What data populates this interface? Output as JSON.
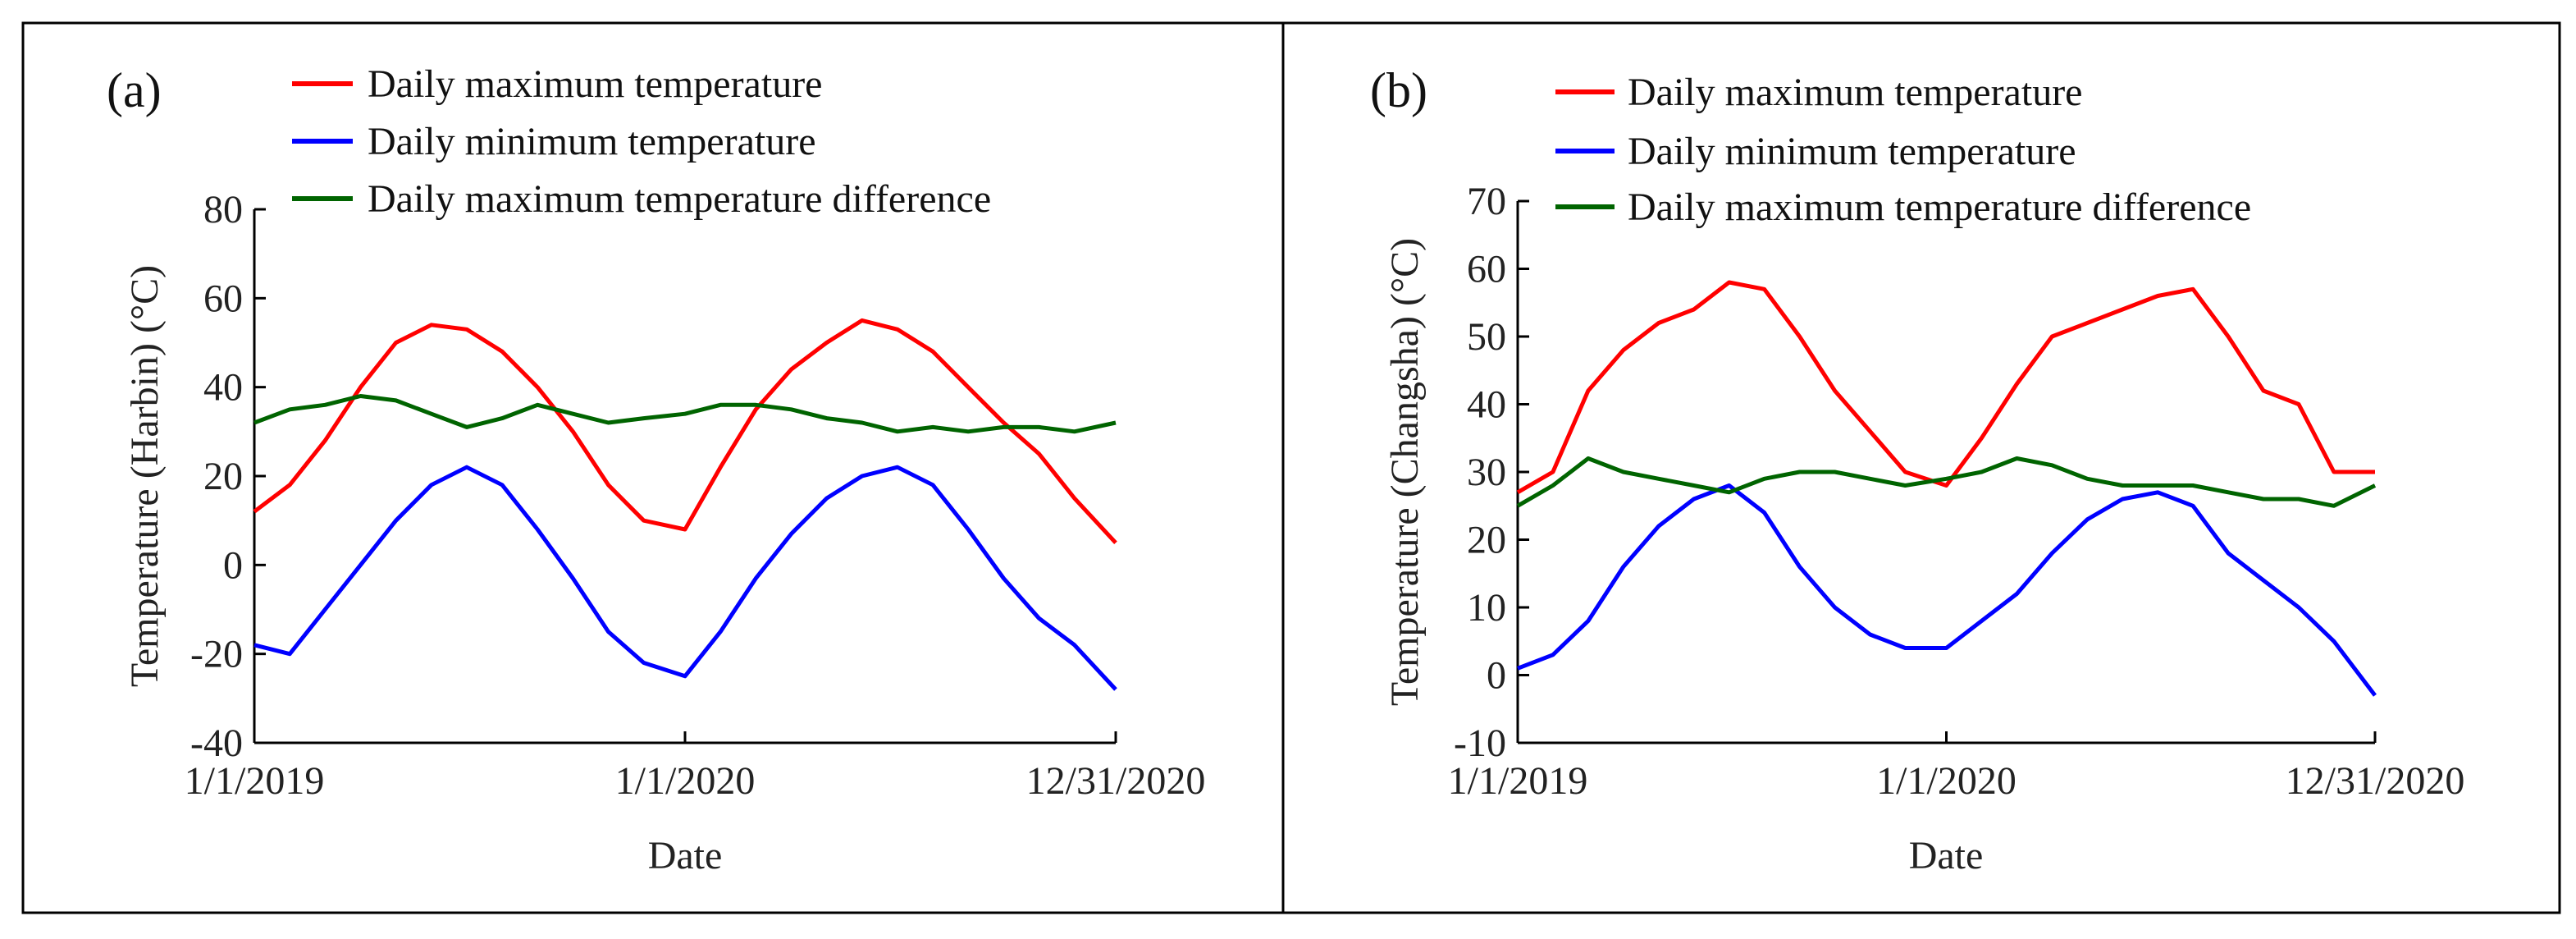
{
  "chart_data": [
    {
      "type": "line",
      "panel_label": "(a)",
      "xlabel": "Date",
      "ylabel": "Temperature (Harbin) (°C)",
      "x_ticks": [
        "1/1/2019",
        "1/1/2020",
        "12/31/2020"
      ],
      "x_range_days": [
        0,
        730
      ],
      "ylim": [
        -40,
        80
      ],
      "y_ticks": [
        -40,
        -20,
        0,
        20,
        40,
        60,
        80
      ],
      "legend_position": "top",
      "series": [
        {
          "name": "Daily maximum temperature",
          "color": "#ff0000",
          "x_days": [
            0,
            30,
            60,
            90,
            120,
            150,
            180,
            210,
            240,
            270,
            300,
            330,
            365,
            395,
            425,
            455,
            485,
            515,
            545,
            575,
            605,
            635,
            665,
            695,
            730
          ],
          "values": [
            12,
            18,
            28,
            40,
            50,
            54,
            53,
            48,
            40,
            30,
            18,
            10,
            8,
            22,
            35,
            44,
            50,
            55,
            53,
            48,
            40,
            32,
            25,
            15,
            5
          ]
        },
        {
          "name": "Daily minimum temperature",
          "color": "#0000ff",
          "x_days": [
            0,
            30,
            60,
            90,
            120,
            150,
            180,
            210,
            240,
            270,
            300,
            330,
            365,
            395,
            425,
            455,
            485,
            515,
            545,
            575,
            605,
            635,
            665,
            695,
            730
          ],
          "values": [
            -18,
            -20,
            -10,
            0,
            10,
            18,
            22,
            18,
            8,
            -3,
            -15,
            -22,
            -25,
            -15,
            -3,
            7,
            15,
            20,
            22,
            18,
            8,
            -3,
            -12,
            -18,
            -28
          ]
        },
        {
          "name": "Daily maximum temperature difference",
          "color": "#006400",
          "x_days": [
            0,
            30,
            60,
            90,
            120,
            150,
            180,
            210,
            240,
            270,
            300,
            330,
            365,
            395,
            425,
            455,
            485,
            515,
            545,
            575,
            605,
            635,
            665,
            695,
            730
          ],
          "values": [
            32,
            35,
            36,
            38,
            37,
            34,
            31,
            33,
            36,
            34,
            32,
            33,
            34,
            36,
            36,
            35,
            33,
            32,
            30,
            31,
            30,
            31,
            31,
            30,
            32
          ]
        }
      ]
    },
    {
      "type": "line",
      "panel_label": "(b)",
      "xlabel": "Date",
      "ylabel": "Temperature (Changsha) (°C)",
      "x_ticks": [
        "1/1/2019",
        "1/1/2020",
        "12/31/2020"
      ],
      "x_range_days": [
        0,
        730
      ],
      "ylim": [
        -10,
        70
      ],
      "y_ticks": [
        -10,
        0,
        10,
        20,
        30,
        40,
        50,
        60,
        70
      ],
      "legend_position": "top",
      "series": [
        {
          "name": "Daily maximum temperature",
          "color": "#ff0000",
          "x_days": [
            0,
            30,
            60,
            90,
            120,
            150,
            180,
            210,
            240,
            270,
            300,
            330,
            365,
            395,
            425,
            455,
            485,
            515,
            545,
            575,
            605,
            635,
            665,
            695,
            730
          ],
          "values": [
            27,
            30,
            42,
            48,
            52,
            54,
            58,
            57,
            50,
            42,
            36,
            30,
            28,
            35,
            43,
            50,
            52,
            54,
            56,
            57,
            50,
            42,
            40,
            30,
            30
          ]
        },
        {
          "name": "Daily minimum temperature",
          "color": "#0000ff",
          "x_days": [
            0,
            30,
            60,
            90,
            120,
            150,
            180,
            210,
            240,
            270,
            300,
            330,
            365,
            395,
            425,
            455,
            485,
            515,
            545,
            575,
            605,
            635,
            665,
            695,
            730
          ],
          "values": [
            1,
            3,
            8,
            16,
            22,
            26,
            28,
            24,
            16,
            10,
            6,
            4,
            4,
            8,
            12,
            18,
            23,
            26,
            27,
            25,
            18,
            14,
            10,
            5,
            -3
          ]
        },
        {
          "name": "Daily maximum temperature difference",
          "color": "#006400",
          "x_days": [
            0,
            30,
            60,
            90,
            120,
            150,
            180,
            210,
            240,
            270,
            300,
            330,
            365,
            395,
            425,
            455,
            485,
            515,
            545,
            575,
            605,
            635,
            665,
            695,
            730
          ],
          "values": [
            25,
            28,
            32,
            30,
            29,
            28,
            27,
            29,
            30,
            30,
            29,
            28,
            29,
            30,
            32,
            31,
            29,
            28,
            28,
            28,
            27,
            26,
            26,
            25,
            28
          ]
        }
      ]
    }
  ]
}
